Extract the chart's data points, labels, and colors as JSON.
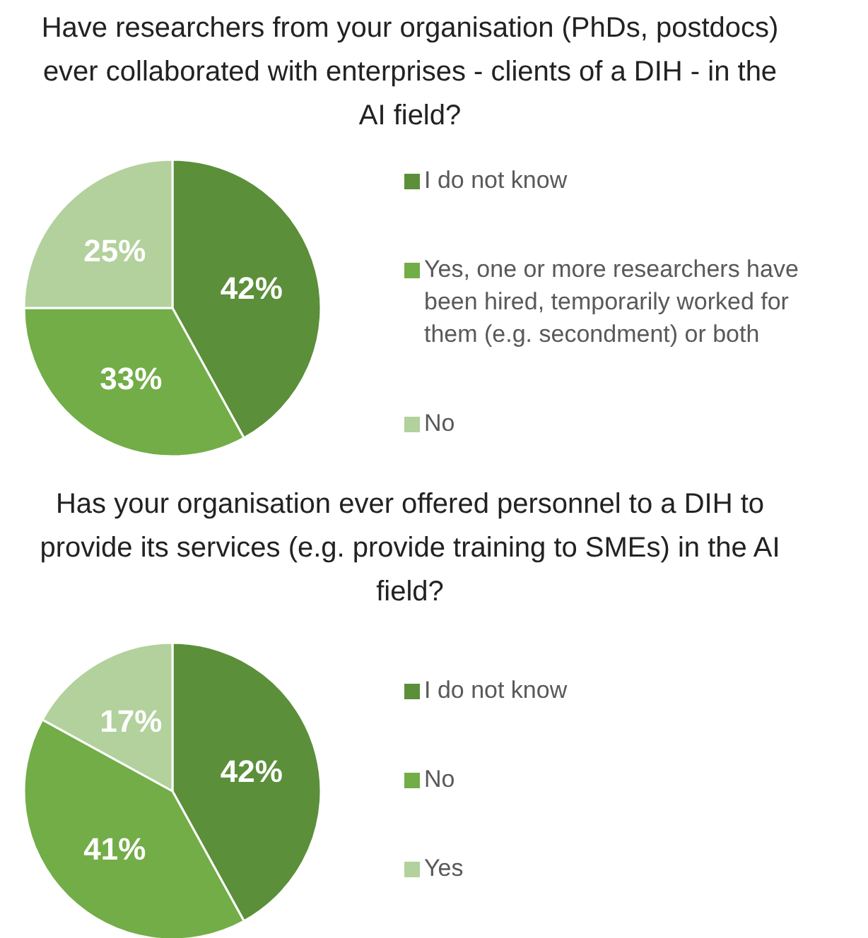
{
  "chart_data": [
    {
      "type": "pie",
      "title": "Have researchers from your organisation (PhDs, postdocs) ever collaborated with enterprises - clients of a DIH - in the AI field?",
      "categories": [
        "I do not know",
        "Yes, one or more researchers have been hired, temporarily worked for them  (e.g. secondment) or both",
        "No"
      ],
      "values": [
        42,
        33,
        25
      ],
      "value_labels": [
        "42%",
        "33%",
        "25%"
      ],
      "colors": [
        "#5b8f3a",
        "#72ad47",
        "#b2d19c"
      ],
      "legend": "right"
    },
    {
      "type": "pie",
      "title": "Has your organisation ever offered personnel to a DIH to provide its services (e.g. provide training to SMEs) in the AI field?",
      "categories": [
        "I do not know",
        "No",
        "Yes"
      ],
      "values": [
        42,
        41,
        17
      ],
      "value_labels": [
        "42%",
        "41%",
        "17%"
      ],
      "colors": [
        "#5b8f3a",
        "#72ad47",
        "#b2d19c"
      ],
      "legend": "right"
    }
  ]
}
